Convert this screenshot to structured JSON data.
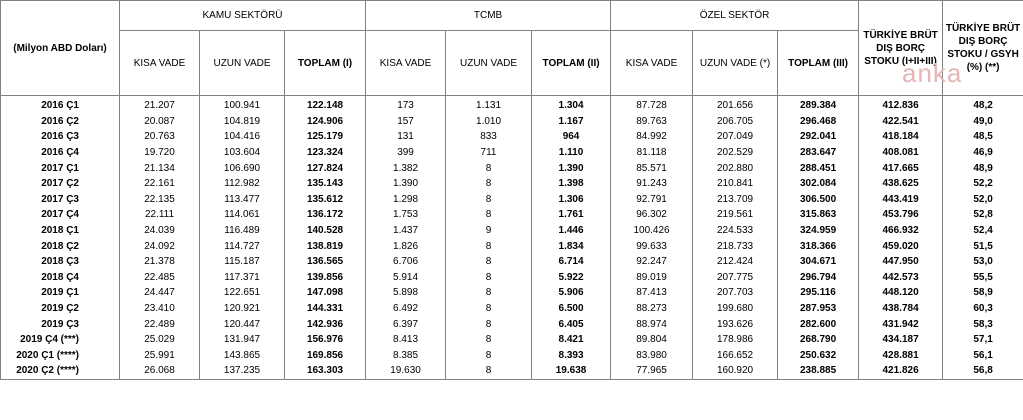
{
  "header": {
    "unit_label": "(Milyon ABD Doları)",
    "groups": [
      "KAMU SEKTÖRÜ",
      "TCMB",
      "ÖZEL SEKTÖR"
    ],
    "turkiye_total": "TÜRKİYE BRÜT DIŞ BORÇ STOKU (I+II+III)",
    "turkiye_gdp": "TÜRKİYE BRÜT DIŞ BORÇ STOKU / GSYH (%) (**)",
    "kamu_cols": [
      "KISA VADE",
      "UZUN VADE",
      "TOPLAM (I)"
    ],
    "tcmb_cols": [
      "KISA VADE",
      "UZUN VADE",
      "TOPLAM (II)"
    ],
    "ozel_cols": [
      "KISA VADE",
      "UZUN VADE (*)",
      "TOPLAM (III)"
    ]
  },
  "watermark": "anka",
  "rows": [
    [
      "2016 Ç1",
      "21.207",
      "100.941",
      "122.148",
      "173",
      "1.131",
      "1.304",
      "87.728",
      "201.656",
      "289.384",
      "412.836",
      "48,2"
    ],
    [
      "2016 Ç2",
      "20.087",
      "104.819",
      "124.906",
      "157",
      "1.010",
      "1.167",
      "89.763",
      "206.705",
      "296.468",
      "422.541",
      "49,0"
    ],
    [
      "2016 Ç3",
      "20.763",
      "104.416",
      "125.179",
      "131",
      "833",
      "964",
      "84.992",
      "207.049",
      "292.041",
      "418.184",
      "48,5"
    ],
    [
      "2016 Ç4",
      "19.720",
      "103.604",
      "123.324",
      "399",
      "711",
      "1.110",
      "81.118",
      "202.529",
      "283.647",
      "408.081",
      "46,9"
    ],
    [
      "2017 Ç1",
      "21.134",
      "106.690",
      "127.824",
      "1.382",
      "8",
      "1.390",
      "85.571",
      "202.880",
      "288.451",
      "417.665",
      "48,9"
    ],
    [
      "2017 Ç2",
      "22.161",
      "112.982",
      "135.143",
      "1.390",
      "8",
      "1.398",
      "91.243",
      "210.841",
      "302.084",
      "438.625",
      "52,2"
    ],
    [
      "2017 Ç3",
      "22.135",
      "113.477",
      "135.612",
      "1.298",
      "8",
      "1.306",
      "92.791",
      "213.709",
      "306.500",
      "443.419",
      "52,0"
    ],
    [
      "2017 Ç4",
      "22.111",
      "114.061",
      "136.172",
      "1.753",
      "8",
      "1.761",
      "96.302",
      "219.561",
      "315.863",
      "453.796",
      "52,8"
    ],
    [
      "2018 Ç1",
      "24.039",
      "116.489",
      "140.528",
      "1.437",
      "9",
      "1.446",
      "100.426",
      "224.533",
      "324.959",
      "466.932",
      "52,4"
    ],
    [
      "2018 Ç2",
      "24.092",
      "114.727",
      "138.819",
      "1.826",
      "8",
      "1.834",
      "99.633",
      "218.733",
      "318.366",
      "459.020",
      "51,5"
    ],
    [
      "2018 Ç3",
      "21.378",
      "115.187",
      "136.565",
      "6.706",
      "8",
      "6.714",
      "92.247",
      "212.424",
      "304.671",
      "447.950",
      "53,0"
    ],
    [
      "2018 Ç4",
      "22.485",
      "117.371",
      "139.856",
      "5.914",
      "8",
      "5.922",
      "89.019",
      "207.775",
      "296.794",
      "442.573",
      "55,5"
    ],
    [
      "2019 Ç1",
      "24.447",
      "122.651",
      "147.098",
      "5.898",
      "8",
      "5.906",
      "87.413",
      "207.703",
      "295.116",
      "448.120",
      "58,9"
    ],
    [
      "2019 Ç2",
      "23.410",
      "120.921",
      "144.331",
      "6.492",
      "8",
      "6.500",
      "88.273",
      "199.680",
      "287.953",
      "438.784",
      "60,3"
    ],
    [
      "2019 Ç3",
      "22.489",
      "120.447",
      "142.936",
      "6.397",
      "8",
      "6.405",
      "88.974",
      "193.626",
      "282.600",
      "431.942",
      "58,3"
    ],
    [
      "2019 Ç4 (***)",
      "25.029",
      "131.947",
      "156.976",
      "8.413",
      "8",
      "8.421",
      "89.804",
      "178.986",
      "268.790",
      "434.187",
      "57,1"
    ],
    [
      "2020 Ç1 (****)",
      "25.991",
      "143.865",
      "169.856",
      "8.385",
      "8",
      "8.393",
      "83.980",
      "166.652",
      "250.632",
      "428.881",
      "56,1"
    ],
    [
      "2020 Ç2 (****)",
      "26.068",
      "137.235",
      "163.303",
      "19.630",
      "8",
      "19.638",
      "77.965",
      "160.920",
      "238.885",
      "421.826",
      "56,8"
    ]
  ]
}
